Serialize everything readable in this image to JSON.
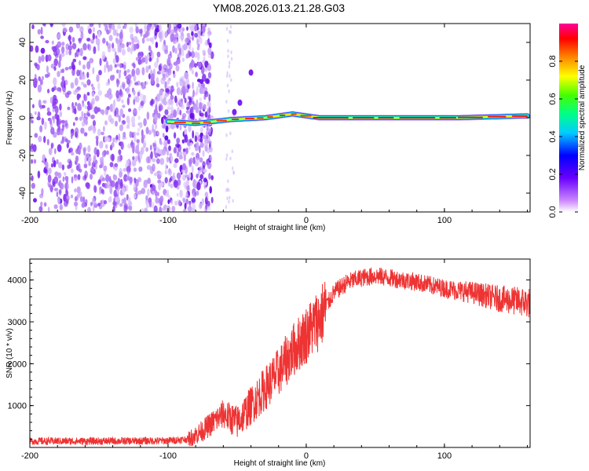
{
  "title": "YM08.2026.013.21.28.G03",
  "chart_data": [
    {
      "type": "heatmap",
      "name": "spectrogram",
      "xlabel": "Height of straight line (km)",
      "ylabel": "Frequency (Hz)",
      "xlim": [
        -200,
        162
      ],
      "ylim": [
        -50,
        50
      ],
      "xticks": [
        -200,
        -100,
        0,
        100
      ],
      "yticks": [
        -40,
        -20,
        0,
        20,
        40
      ],
      "colorbar": {
        "label": "Normalized spectral amplitude",
        "range": [
          0,
          1
        ],
        "ticks": [
          0.0,
          0.2,
          0.4,
          0.6,
          0.8
        ],
        "tick_labels": [
          "0.0",
          "0.2",
          "0.4",
          "0.6",
          "0.8"
        ]
      },
      "features": {
        "noise_region_x": [
          -200,
          -85
        ],
        "signal_start_x": -100,
        "signal_track": [
          {
            "x": -100,
            "freq": -2
          },
          {
            "x": -80,
            "freq": -3
          },
          {
            "x": -55,
            "freq": -1
          },
          {
            "x": -30,
            "freq": 0
          },
          {
            "x": -10,
            "freq": 2
          },
          {
            "x": 10,
            "freq": 0
          },
          {
            "x": 60,
            "freq": 0
          },
          {
            "x": 110,
            "freq": 0
          },
          {
            "x": 160,
            "freq": 1
          }
        ]
      }
    },
    {
      "type": "line",
      "name": "snr",
      "xlabel": "Height of straight line (km)",
      "ylabel": "SNR (10 * v/v)",
      "xlim": [
        -200,
        162
      ],
      "ylim": [
        0,
        4500
      ],
      "xticks": [
        -200,
        -100,
        0,
        100
      ],
      "yticks": [
        1000,
        2000,
        3000,
        4000
      ],
      "color": "#ee3333",
      "series": [
        {
          "name": "SNR",
          "x": [
            -200,
            -150,
            -100,
            -85,
            -75,
            -60,
            -50,
            -40,
            -30,
            -20,
            -10,
            0,
            10,
            20,
            30,
            40,
            50,
            60,
            80,
            100,
            120,
            140,
            162
          ],
          "values": [
            150,
            150,
            160,
            200,
            400,
            800,
            600,
            1000,
            1400,
            1800,
            2300,
            2700,
            3100,
            3700,
            3950,
            4050,
            4100,
            4050,
            3950,
            3800,
            3700,
            3550,
            3450
          ]
        }
      ]
    }
  ]
}
